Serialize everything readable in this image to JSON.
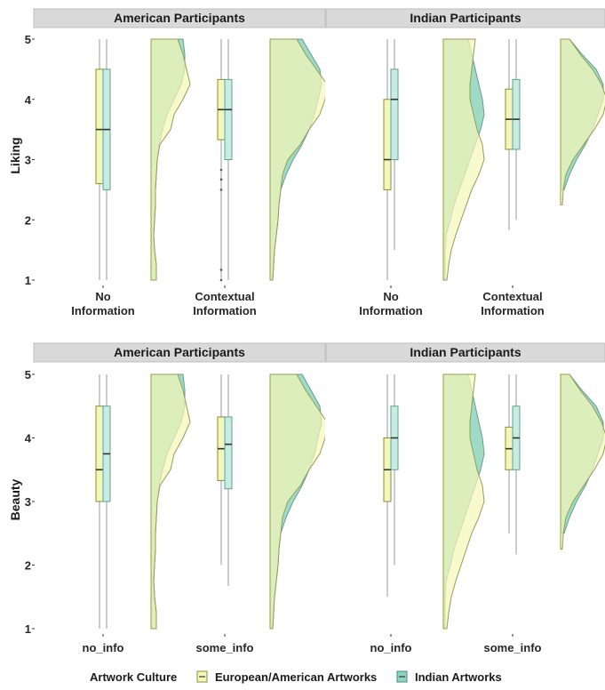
{
  "chart_data": [
    {
      "type": "raincloud",
      "ylabel": "Liking",
      "ylim": [
        1,
        5
      ],
      "yticks": [
        "1",
        "2",
        "3",
        "4",
        "5"
      ],
      "categories": [
        {
          "lines": [
            "No",
            "Information"
          ]
        },
        {
          "lines": [
            "Contextual",
            "Information"
          ]
        }
      ],
      "facets": [
        {
          "label": "American Participants",
          "groups": [
            {
              "european": {
                "q1": 2.6,
                "median": 3.5,
                "q3": 4.5,
                "min": 1,
                "max": 5
              },
              "indian": {
                "q1": 2.5,
                "median": 3.5,
                "q3": 4.5,
                "min": 1,
                "max": 5
              },
              "outliers": []
            },
            {
              "european": {
                "q1": 3.33,
                "median": 3.83,
                "q3": 4.33,
                "min": 1,
                "max": 5
              },
              "indian": {
                "q1": 3.0,
                "median": 3.83,
                "q3": 4.33,
                "min": 1,
                "max": 5
              },
              "outliers": [
                2.83,
                2.67,
                2.5,
                1.17,
                1.0
              ]
            }
          ]
        },
        {
          "label": "Indian Participants",
          "groups": [
            {
              "european": {
                "q1": 2.5,
                "median": 3.0,
                "q3": 4.0,
                "min": 1,
                "max": 5
              },
              "indian": {
                "q1": 3.0,
                "median": 4.0,
                "q3": 4.5,
                "min": 1.5,
                "max": 5
              },
              "outliers": []
            },
            {
              "european": {
                "q1": 3.17,
                "median": 3.67,
                "q3": 4.17,
                "min": 1.83,
                "max": 5
              },
              "indian": {
                "q1": 3.17,
                "median": 3.67,
                "q3": 4.33,
                "min": 2.0,
                "max": 5
              },
              "outliers": []
            }
          ]
        }
      ]
    },
    {
      "type": "raincloud",
      "ylabel": "Beauty",
      "ylim": [
        1,
        5
      ],
      "yticks": [
        "1",
        "2",
        "3",
        "4",
        "5"
      ],
      "categories": [
        {
          "lines": [
            "no_info"
          ]
        },
        {
          "lines": [
            "some_info"
          ]
        }
      ],
      "facets": [
        {
          "label": "American Participants",
          "groups": [
            {
              "european": {
                "q1": 3.0,
                "median": 3.5,
                "q3": 4.5,
                "min": 1,
                "max": 5
              },
              "indian": {
                "q1": 3.0,
                "median": 3.75,
                "q3": 4.5,
                "min": 1,
                "max": 5
              },
              "outliers": []
            },
            {
              "european": {
                "q1": 3.33,
                "median": 3.83,
                "q3": 4.33,
                "min": 2.0,
                "max": 5
              },
              "indian": {
                "q1": 3.2,
                "median": 3.9,
                "q3": 4.33,
                "min": 1.67,
                "max": 5
              },
              "outliers": []
            }
          ]
        },
        {
          "label": "Indian Participants",
          "groups": [
            {
              "european": {
                "q1": 3.0,
                "median": 3.5,
                "q3": 4.0,
                "min": 1.5,
                "max": 5
              },
              "indian": {
                "q1": 3.5,
                "median": 4.0,
                "q3": 4.5,
                "min": 2.0,
                "max": 5
              },
              "outliers": []
            },
            {
              "european": {
                "q1": 3.5,
                "median": 3.83,
                "q3": 4.17,
                "min": 2.5,
                "max": 5
              },
              "indian": {
                "q1": 3.5,
                "median": 4.0,
                "q3": 4.5,
                "min": 2.17,
                "max": 5
              },
              "outliers": []
            }
          ]
        }
      ]
    }
  ],
  "legend": {
    "title": "Artwork Culture",
    "items": [
      {
        "label": "European/American Artworks",
        "color": "#f5f7b8",
        "stroke": "#8a8c3a"
      },
      {
        "label": "Indian Artworks",
        "color": "#8fd3c2",
        "stroke": "#3f8f7c"
      }
    ]
  },
  "colors": {
    "strip_bg": "#d9d9d9",
    "european_fill": "#f5f7b8",
    "indian_fill": "#8fd3c2",
    "indian_violin": "#7fcdb0"
  }
}
